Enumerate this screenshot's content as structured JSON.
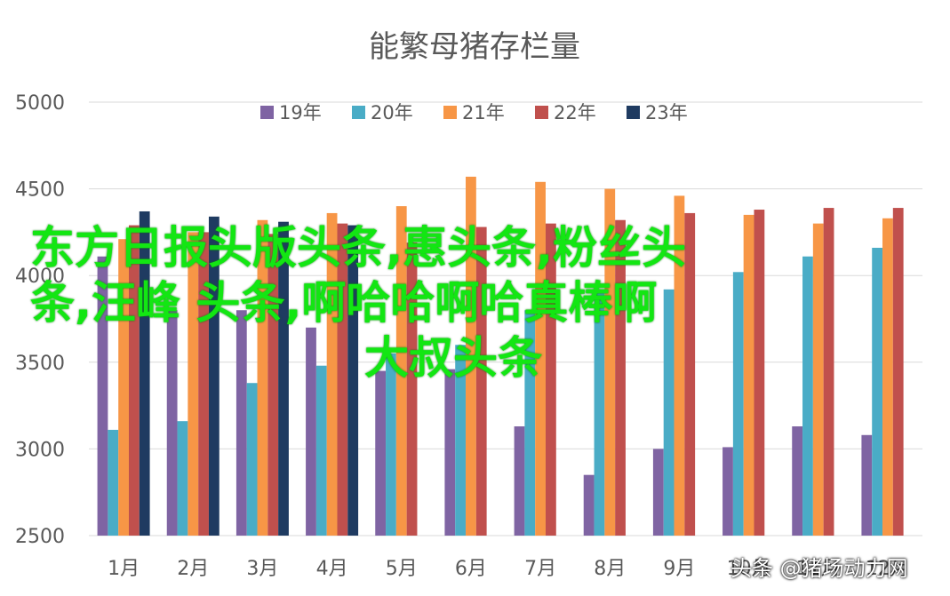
{
  "chart_data": {
    "type": "bar",
    "title": "能繁母猪存栏量",
    "categories": [
      "1月",
      "2月",
      "3月",
      "4月",
      "5月",
      "6月",
      "7月",
      "8月",
      "9月",
      "10月",
      "11月",
      "12月"
    ],
    "ylim": [
      2500,
      5000
    ],
    "yticks": [
      "5000",
      "4500",
      "4000",
      "3500",
      "3000",
      "2500"
    ],
    "grid": true,
    "legend_position": "top",
    "series": [
      {
        "name": "19年",
        "color": "#7f64a3",
        "values": [
          4110,
          3800,
          3800,
          3700,
          3450,
          3460,
          3130,
          2850,
          3000,
          3010,
          3130,
          3080
        ]
      },
      {
        "name": "20年",
        "color": "#4aacc6",
        "values": [
          3110,
          3160,
          3380,
          3480,
          3550,
          3600,
          3800,
          3900,
          3920,
          4020,
          4110,
          4160
        ]
      },
      {
        "name": "21年",
        "color": "#f79646",
        "values": [
          4210,
          4250,
          4320,
          4360,
          4400,
          4570,
          4540,
          4500,
          4460,
          4350,
          4300,
          4330
        ]
      },
      {
        "name": "22年",
        "color": "#c0504d",
        "values": [
          4290,
          4250,
          4240,
          4300,
          4190,
          4280,
          4300,
          4320,
          4360,
          4380,
          4390,
          4390
        ]
      },
      {
        "name": "23年",
        "color": "#1f3b61",
        "values": [
          4370,
          4340,
          4310,
          4290,
          null,
          null,
          null,
          null,
          null,
          null,
          null,
          null
        ]
      }
    ]
  },
  "overlay": {
    "line1": "东方日报头版头条,惠头条,粉丝头",
    "line2": "条,汪峰 头条,啊哈哈啊哈真棒啊",
    "line3": "大叔头条"
  },
  "watermark": "头条 @猪场动力网"
}
